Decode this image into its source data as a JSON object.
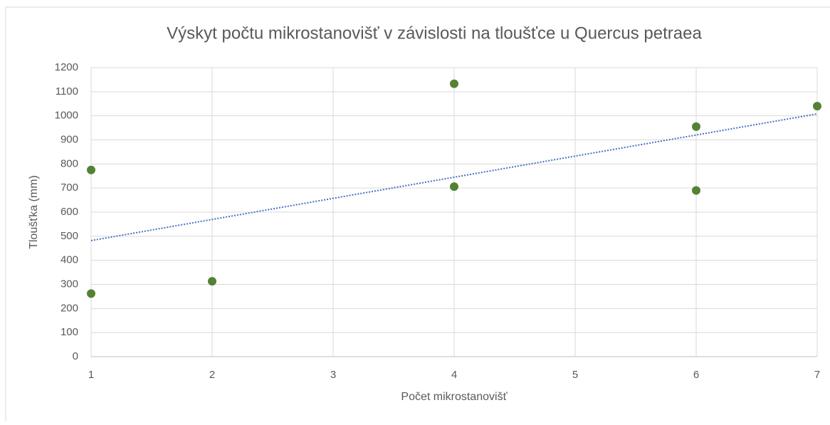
{
  "chart_data": {
    "type": "scatter",
    "title": "Výskyt počtu mikrostanovišť v závislosti na tloušťce u Quercus petraea",
    "xlabel": "Počet mikrostanovišť",
    "ylabel": "Tloušťka (mm)",
    "x": [
      1,
      1,
      2,
      4,
      4,
      6,
      6,
      7
    ],
    "values": [
      775,
      262,
      313,
      1133,
      706,
      955,
      690,
      1040
    ],
    "color": "#548235",
    "trendline": {
      "x": [
        1,
        7
      ],
      "values": [
        482,
        1008
      ],
      "color": "#4472c4"
    },
    "xlim": [
      1,
      7
    ],
    "xticks": [
      1,
      2,
      3,
      4,
      5,
      6,
      7
    ],
    "ylim": [
      0,
      1200
    ],
    "yticks": [
      0,
      100,
      200,
      300,
      400,
      500,
      600,
      700,
      800,
      900,
      1000,
      1100,
      1200
    ],
    "grid": true
  }
}
